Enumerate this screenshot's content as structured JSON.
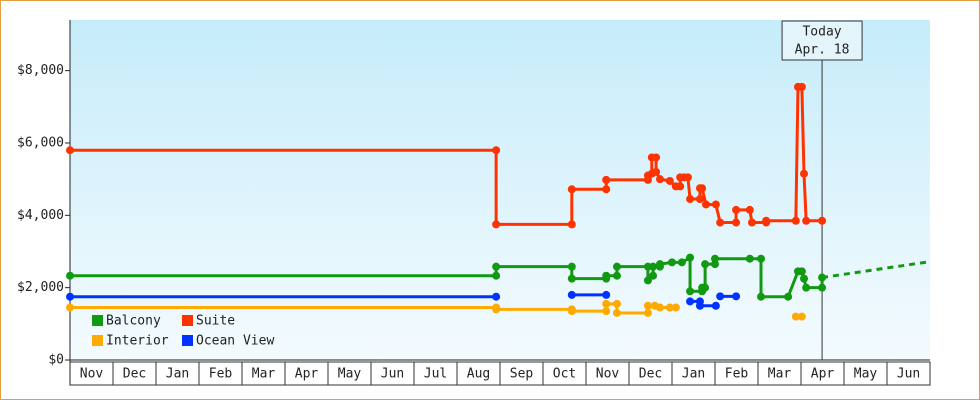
{
  "chart_data": {
    "type": "line",
    "categories": [
      "Nov",
      "Dec",
      "Jan",
      "Feb",
      "Mar",
      "Apr",
      "May",
      "Jun",
      "Jul",
      "Aug",
      "Sep",
      "Oct",
      "Nov",
      "Dec",
      "Jan",
      "Feb",
      "Mar",
      "Apr",
      "May",
      "Jun"
    ],
    "xlim": [
      0,
      20
    ],
    "ylim": [
      0,
      9400
    ],
    "yticks": [
      {
        "value": 0,
        "label": "$0"
      },
      {
        "value": 2000,
        "label": "$2,000"
      },
      {
        "value": 4000,
        "label": "$4,000"
      },
      {
        "value": 6000,
        "label": "$6,000"
      },
      {
        "value": 8000,
        "label": "$8,000"
      }
    ],
    "series": [
      {
        "name": "Balcony",
        "color": "#119911",
        "x": [
          0,
          9.91,
          9.91,
          11.67,
          11.67,
          12.47,
          12.47,
          12.72,
          12.72,
          13.44,
          13.44,
          13.56,
          13.56,
          13.72,
          13.72,
          14.0,
          14.23,
          14.42,
          14.42,
          14.7,
          14.7,
          14.77,
          14.77,
          15.0,
          15.0,
          15.81,
          16.07,
          16.07,
          16.7,
          16.93,
          17.02,
          17.07,
          17.12,
          17.49,
          17.49
        ],
        "values": [
          2330,
          2330,
          2580,
          2580,
          2250,
          2250,
          2330,
          2330,
          2580,
          2580,
          2200,
          2330,
          2580,
          2580,
          2650,
          2700,
          2700,
          2830,
          1900,
          1900,
          2000,
          2000,
          2650,
          2650,
          2800,
          2800,
          2800,
          1750,
          1750,
          2450,
          2450,
          2250,
          2000,
          2000,
          2280
        ]
      },
      {
        "name": "Suite",
        "color": "#ff3300",
        "x": [
          0,
          9.91,
          9.91,
          11.67,
          11.67,
          12.47,
          12.47,
          13.44,
          13.44,
          13.53,
          13.53,
          13.63,
          13.63,
          13.72,
          13.95,
          14.09,
          14.19,
          14.19,
          14.28,
          14.37,
          14.42,
          14.65,
          14.65,
          14.7,
          14.79,
          15.02,
          15.12,
          15.49,
          15.49,
          15.81,
          15.86,
          16.19,
          16.19,
          16.88,
          16.93,
          17.02,
          17.07,
          17.12,
          17.49
        ],
        "values": [
          5800,
          5800,
          3750,
          3750,
          4720,
          4720,
          4980,
          4980,
          5100,
          5150,
          5600,
          5600,
          5200,
          5000,
          4950,
          4800,
          4800,
          5050,
          5050,
          5050,
          4450,
          4450,
          4750,
          4750,
          4300,
          4300,
          3800,
          3800,
          4150,
          4150,
          3800,
          3800,
          3850,
          3850,
          7550,
          7550,
          5150,
          3850,
          3850
        ]
      },
      {
        "name": "Interior",
        "color": "#ffaa00",
        "x": [
          0,
          9.91,
          9.91,
          11.67,
          11.67,
          12.47,
          12.47,
          12.72,
          12.72,
          13.44,
          13.44,
          13.6,
          13.72,
          13.95,
          14.09,
          null,
          16.88,
          17.02
        ],
        "values": [
          1450,
          1450,
          1400,
          1400,
          1350,
          1350,
          1550,
          1550,
          1300,
          1300,
          1500,
          1500,
          1450,
          1450,
          1450,
          null,
          1200,
          1200
        ]
      },
      {
        "name": "Ocean View",
        "color": "#0033ff",
        "x": [
          0,
          9.91,
          null,
          11.67,
          12.47,
          null,
          14.42,
          14.65,
          14.65,
          15.02,
          null,
          15.12,
          15.49
        ],
        "values": [
          1750,
          1750,
          null,
          1800,
          1800,
          null,
          1620,
          1620,
          1500,
          1500,
          null,
          1760,
          1760
        ]
      }
    ],
    "forecast": {
      "color": "#119911",
      "x": [
        17.49,
        20
      ],
      "values": [
        2280,
        2720
      ]
    },
    "annotation": {
      "label": "Today",
      "date": "Apr. 18",
      "x": 17.49
    }
  }
}
